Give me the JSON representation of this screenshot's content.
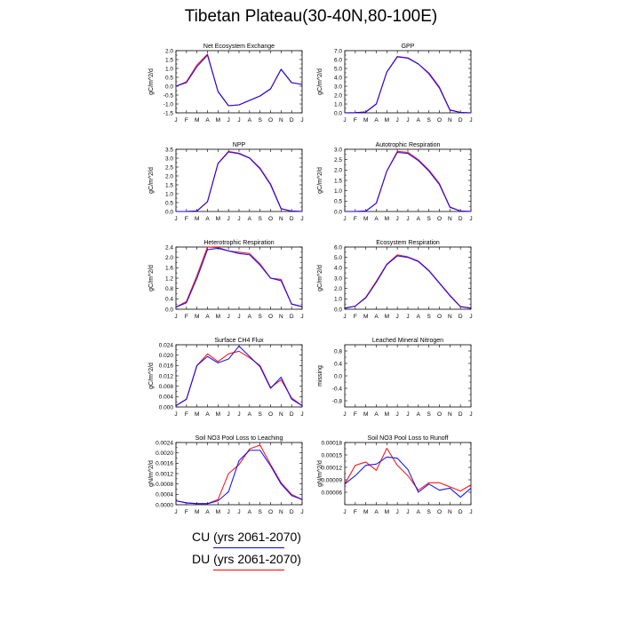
{
  "title": "Tibetan Plateau(30-40N,80-100E)",
  "months": [
    "J",
    "F",
    "M",
    "A",
    "M",
    "J",
    "J",
    "A",
    "S",
    "O",
    "N",
    "D",
    "J"
  ],
  "legend": [
    {
      "label": "CU (yrs 2061-2070)",
      "color": "#0000ff"
    },
    {
      "label": "DU (yrs 2061-2070)",
      "color": "#ff0000"
    }
  ],
  "chart_data": [
    {
      "type": "line",
      "title": "Net Ecosystem Exchange",
      "ylabel": "gC/m^2/d",
      "ylim": [
        -1.5,
        2.0
      ],
      "yticks": [
        -1.5,
        -1.0,
        -0.5,
        0.0,
        0.5,
        1.0,
        1.5,
        2.0
      ],
      "ytick_labels": [
        "-1.5",
        "-1.0",
        "-0.5",
        "0.0",
        "0.5",
        "1.0",
        "1.5",
        "2.0"
      ],
      "series": [
        {
          "name": "CU (yrs 2061-2070)",
          "color": "#0000ff",
          "values": [
            0.0,
            0.2,
            1.1,
            1.75,
            -0.3,
            -1.1,
            -1.05,
            -0.8,
            -0.55,
            -0.15,
            0.95,
            0.2,
            0.1
          ]
        },
        {
          "name": "DU (yrs 2061-2070)",
          "color": "#ff0000",
          "values": [
            0.0,
            0.25,
            1.2,
            1.8,
            -0.3,
            -1.1,
            -1.05,
            -0.8,
            -0.55,
            -0.15,
            0.95,
            0.2,
            0.1
          ]
        }
      ]
    },
    {
      "type": "line",
      "title": "GPP",
      "ylabel": "gC/m^2/d",
      "ylim": [
        0.0,
        7.0
      ],
      "yticks": [
        0,
        1,
        2,
        3,
        4,
        5,
        6,
        7
      ],
      "ytick_labels": [
        "0.0",
        "1.0",
        "2.0",
        "3.0",
        "4.0",
        "5.0",
        "6.0",
        "7.0"
      ],
      "series": [
        {
          "name": "CU (yrs 2061-2070)",
          "color": "#0000ff",
          "values": [
            0.0,
            0.02,
            0.1,
            1.0,
            4.6,
            6.3,
            6.15,
            5.5,
            4.4,
            2.8,
            0.3,
            0.05,
            0.0
          ]
        },
        {
          "name": "DU (yrs 2061-2070)",
          "color": "#ff0000",
          "values": [
            0.0,
            0.02,
            0.1,
            1.0,
            4.6,
            6.35,
            6.2,
            5.5,
            4.5,
            2.9,
            0.35,
            0.05,
            0.0
          ]
        }
      ]
    },
    {
      "type": "line",
      "title": "NPP",
      "ylabel": "gC/m^2/d",
      "ylim": [
        0.0,
        3.5
      ],
      "yticks": [
        0,
        0.5,
        1,
        1.5,
        2,
        2.5,
        3,
        3.5
      ],
      "ytick_labels": [
        "0.0",
        "0.5",
        "1.0",
        "1.5",
        "2.0",
        "2.5",
        "3.0",
        "3.5"
      ],
      "series": [
        {
          "name": "CU (yrs 2061-2070)",
          "color": "#0000ff",
          "values": [
            0.0,
            0.0,
            0.03,
            0.55,
            2.7,
            3.35,
            3.25,
            3.0,
            2.4,
            1.5,
            0.15,
            0.02,
            0.0
          ]
        },
        {
          "name": "DU (yrs 2061-2070)",
          "color": "#ff0000",
          "values": [
            0.0,
            0.0,
            0.03,
            0.55,
            2.7,
            3.38,
            3.28,
            3.02,
            2.45,
            1.55,
            0.17,
            0.02,
            0.0
          ]
        }
      ]
    },
    {
      "type": "line",
      "title": "Autotrophic Respiration",
      "ylabel": "gC/m^2/d",
      "ylim": [
        0.0,
        3.0
      ],
      "yticks": [
        0,
        0.5,
        1,
        1.5,
        2,
        2.5,
        3
      ],
      "ytick_labels": [
        "0.0",
        "0.5",
        "1.0",
        "1.5",
        "2.0",
        "2.5",
        "3.0"
      ],
      "series": [
        {
          "name": "CU (yrs 2061-2070)",
          "color": "#0000ff",
          "values": [
            0.0,
            0.0,
            0.02,
            0.4,
            1.95,
            2.85,
            2.8,
            2.45,
            1.95,
            1.3,
            0.2,
            0.02,
            0.0
          ]
        },
        {
          "name": "DU (yrs 2061-2070)",
          "color": "#ff0000",
          "values": [
            0.0,
            0.0,
            0.02,
            0.4,
            1.95,
            2.9,
            2.85,
            2.5,
            2.0,
            1.35,
            0.22,
            0.02,
            0.0
          ]
        }
      ]
    },
    {
      "type": "line",
      "title": "Heterotrophic Respiration",
      "ylabel": "gC/m^2/d",
      "ylim": [
        0.0,
        2.4
      ],
      "yticks": [
        0,
        0.4,
        0.8,
        1.2,
        1.6,
        2.0,
        2.4
      ],
      "ytick_labels": [
        "0.0",
        "0.4",
        "0.8",
        "1.2",
        "1.6",
        "2.0",
        "2.4"
      ],
      "series": [
        {
          "name": "CU (yrs 2061-2070)",
          "color": "#0000ff",
          "values": [
            0.08,
            0.25,
            1.2,
            2.3,
            2.35,
            2.25,
            2.15,
            2.1,
            1.7,
            1.2,
            1.1,
            0.2,
            0.1
          ]
        },
        {
          "name": "DU (yrs 2061-2070)",
          "color": "#ff0000",
          "values": [
            0.08,
            0.3,
            1.3,
            2.4,
            2.38,
            2.25,
            2.2,
            2.15,
            1.75,
            1.2,
            1.15,
            0.2,
            0.1
          ]
        }
      ]
    },
    {
      "type": "line",
      "title": "Ecosystem Respiration",
      "ylabel": "gC/m^2/d",
      "ylim": [
        0.0,
        6.0
      ],
      "yticks": [
        0,
        1,
        2,
        3,
        4,
        5,
        6
      ],
      "ytick_labels": [
        "0.0",
        "1.0",
        "2.0",
        "3.0",
        "4.0",
        "5.0",
        "6.0"
      ],
      "series": [
        {
          "name": "CU (yrs 2061-2070)",
          "color": "#0000ff",
          "values": [
            0.1,
            0.3,
            1.1,
            2.6,
            4.3,
            5.15,
            5.0,
            4.6,
            3.7,
            2.5,
            1.3,
            0.25,
            0.1
          ]
        },
        {
          "name": "DU (yrs 2061-2070)",
          "color": "#ff0000",
          "values": [
            0.1,
            0.3,
            1.15,
            2.7,
            4.35,
            5.25,
            5.05,
            4.65,
            3.75,
            2.55,
            1.35,
            0.25,
            0.1
          ]
        }
      ]
    },
    {
      "type": "line",
      "title": "Surface CH4 Flux",
      "ylabel": "gC/m^2/d",
      "ylim": [
        0.0,
        0.024
      ],
      "yticks": [
        0,
        0.004,
        0.008,
        0.012,
        0.016,
        0.02,
        0.024
      ],
      "ytick_labels": [
        "0.000",
        "0.004",
        "0.008",
        "0.012",
        "0.016",
        "0.020",
        "0.024"
      ],
      "series": [
        {
          "name": "CU (yrs 2061-2070)",
          "color": "#0000ff",
          "values": [
            0.0005,
            0.003,
            0.016,
            0.0195,
            0.017,
            0.0185,
            0.0235,
            0.0195,
            0.0155,
            0.0072,
            0.0115,
            0.003,
            0.0005
          ]
        },
        {
          "name": "DU (yrs 2061-2070)",
          "color": "#ff0000",
          "values": [
            0.0005,
            0.003,
            0.016,
            0.0205,
            0.0175,
            0.0205,
            0.0215,
            0.019,
            0.016,
            0.0075,
            0.0105,
            0.0035,
            0.0005
          ]
        }
      ]
    },
    {
      "type": "line",
      "title": "Leached Mineral Nitrogen",
      "ylabel": "missing",
      "ylim": [
        -1.0,
        1.0
      ],
      "yticks": [
        -0.8,
        -0.4,
        0.0,
        0.4,
        0.8
      ],
      "ytick_labels": [
        "-0.8",
        "-0.4",
        "0.0",
        "0.4",
        "0.8"
      ],
      "series": []
    },
    {
      "type": "line",
      "title": "Soil NO3 Pool Loss to Leaching",
      "ylabel": "gN/m^2/d",
      "ylim": [
        0.0,
        0.0024
      ],
      "yticks": [
        0,
        0.0004,
        0.0008,
        0.0012,
        0.0016,
        0.002,
        0.0024
      ],
      "ytick_labels": [
        "0.0000",
        "0.0004",
        "0.0008",
        "0.0012",
        "0.0016",
        "0.0020",
        "0.0024"
      ],
      "series": [
        {
          "name": "CU (yrs 2061-2070)",
          "color": "#0000ff",
          "values": [
            0.00015,
            7e-05,
            4e-05,
            4e-05,
            0.00015,
            0.0005,
            0.0017,
            0.0021,
            0.0021,
            0.0015,
            0.0008,
            0.00035,
            0.0002
          ]
        },
        {
          "name": "DU (yrs 2061-2070)",
          "color": "#ff0000",
          "values": [
            0.00015,
            7e-05,
            4e-05,
            4e-05,
            0.0002,
            0.0012,
            0.00155,
            0.00215,
            0.0023,
            0.00155,
            0.00085,
            0.0004,
            0.0002
          ]
        }
      ]
    },
    {
      "type": "line",
      "title": "Soil NO3 Pool Loss to Runoff",
      "ylabel": "gN/m^2/d",
      "ylim": [
        3e-05,
        0.00018
      ],
      "yticks": [
        6e-05,
        9e-05,
        0.00012,
        0.00015,
        0.00018
      ],
      "ytick_labels": [
        "0.00006",
        "0.00009",
        "0.00012",
        "0.00015",
        "0.00018"
      ],
      "series": [
        {
          "name": "CU (yrs 2061-2070)",
          "color": "#0000ff",
          "values": [
            8e-05,
            0.0001,
            0.000125,
            0.000128,
            0.000145,
            0.000142,
            0.000115,
            6e-05,
            8e-05,
            6.5e-05,
            7e-05,
            4.8e-05,
            7e-05
          ]
        },
        {
          "name": "DU (yrs 2061-2070)",
          "color": "#ff0000",
          "values": [
            8e-05,
            0.000125,
            0.000133,
            0.000113,
            0.000166,
            0.000125,
            0.0001,
            6.5e-05,
            8.3e-05,
            8.3e-05,
            7.3e-05,
            6.3e-05,
            7.8e-05
          ]
        }
      ]
    }
  ]
}
